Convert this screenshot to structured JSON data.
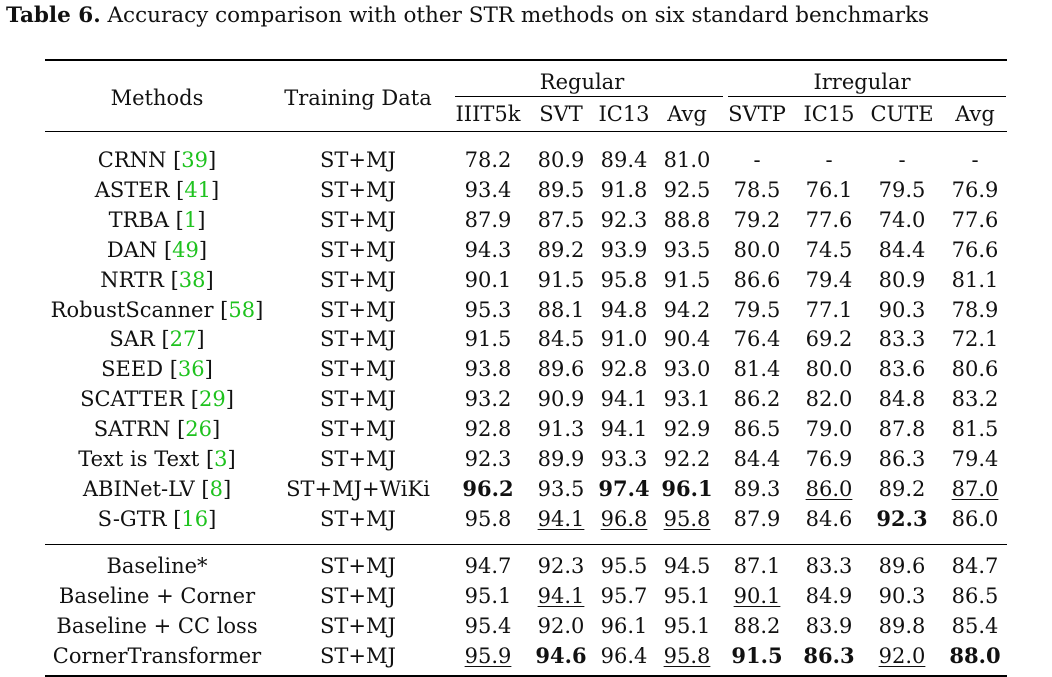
{
  "caption": {
    "label": "Table 6.",
    "text": "Accuracy comparison with other STR methods on six standard benchmarks"
  },
  "header": {
    "methods": "Methods",
    "training_data": "Training Data",
    "group_regular": "Regular",
    "group_irregular": "Irregular",
    "columns": [
      "IIIT5k",
      "SVT",
      "IC13",
      "Avg",
      "SVTP",
      "IC15",
      "CUTE",
      "Avg"
    ]
  },
  "colors": {
    "citation": "#1ec21e",
    "text": "#111111"
  },
  "rows": [
    {
      "method": "CRNN",
      "ref": "39",
      "data": "ST+MJ",
      "vals": [
        "78.2",
        "80.9",
        "89.4",
        "81.0",
        "-",
        "-",
        "-",
        "-"
      ],
      "bold": [],
      "under": []
    },
    {
      "method": "ASTER",
      "ref": "41",
      "data": "ST+MJ",
      "vals": [
        "93.4",
        "89.5",
        "91.8",
        "92.5",
        "78.5",
        "76.1",
        "79.5",
        "76.9"
      ],
      "bold": [],
      "under": []
    },
    {
      "method": "TRBA",
      "ref": "1",
      "data": "ST+MJ",
      "vals": [
        "87.9",
        "87.5",
        "92.3",
        "88.8",
        "79.2",
        "77.6",
        "74.0",
        "77.6"
      ],
      "bold": [],
      "under": []
    },
    {
      "method": "DAN",
      "ref": "49",
      "data": "ST+MJ",
      "vals": [
        "94.3",
        "89.2",
        "93.9",
        "93.5",
        "80.0",
        "74.5",
        "84.4",
        "76.6"
      ],
      "bold": [],
      "under": []
    },
    {
      "method": "NRTR",
      "ref": "38",
      "data": "ST+MJ",
      "vals": [
        "90.1",
        "91.5",
        "95.8",
        "91.5",
        "86.6",
        "79.4",
        "80.9",
        "81.1"
      ],
      "bold": [],
      "under": []
    },
    {
      "method": "RobustScanner",
      "ref": "58",
      "data": "ST+MJ",
      "vals": [
        "95.3",
        "88.1",
        "94.8",
        "94.2",
        "79.5",
        "77.1",
        "90.3",
        "78.9"
      ],
      "bold": [],
      "under": []
    },
    {
      "method": "SAR",
      "ref": "27",
      "data": "ST+MJ",
      "vals": [
        "91.5",
        "84.5",
        "91.0",
        "90.4",
        "76.4",
        "69.2",
        "83.3",
        "72.1"
      ],
      "bold": [],
      "under": []
    },
    {
      "method": "SEED",
      "ref": "36",
      "data": "ST+MJ",
      "vals": [
        "93.8",
        "89.6",
        "92.8",
        "93.0",
        "81.4",
        "80.0",
        "83.6",
        "80.6"
      ],
      "bold": [],
      "under": []
    },
    {
      "method": "SCATTER",
      "ref": "29",
      "data": "ST+MJ",
      "vals": [
        "93.2",
        "90.9",
        "94.1",
        "93.1",
        "86.2",
        "82.0",
        "84.8",
        "83.2"
      ],
      "bold": [],
      "under": []
    },
    {
      "method": "SATRN",
      "ref": "26",
      "data": "ST+MJ",
      "vals": [
        "92.8",
        "91.3",
        "94.1",
        "92.9",
        "86.5",
        "79.0",
        "87.8",
        "81.5"
      ],
      "bold": [],
      "under": []
    },
    {
      "method": "Text is Text",
      "ref": "3",
      "data": "ST+MJ",
      "vals": [
        "92.3",
        "89.9",
        "93.3",
        "92.2",
        "84.4",
        "76.9",
        "86.3",
        "79.4"
      ],
      "bold": [],
      "under": []
    },
    {
      "method": "ABINet-LV",
      "ref": "8",
      "data": "ST+MJ+WiKi",
      "vals": [
        "96.2",
        "93.5",
        "97.4",
        "96.1",
        "89.3",
        "86.0",
        "89.2",
        "87.0"
      ],
      "bold": [
        0,
        2,
        3
      ],
      "under": [
        5,
        7
      ]
    },
    {
      "method": "S-GTR",
      "ref": "16",
      "data": "ST+MJ",
      "vals": [
        "95.8",
        "94.1",
        "96.8",
        "95.8",
        "87.9",
        "84.6",
        "92.3",
        "86.0"
      ],
      "bold": [
        6
      ],
      "under": [
        1,
        2,
        3
      ]
    },
    {
      "method": "Baseline*",
      "ref": "",
      "data": "ST+MJ",
      "vals": [
        "94.7",
        "92.3",
        "95.5",
        "94.5",
        "87.1",
        "83.3",
        "89.6",
        "84.7"
      ],
      "bold": [],
      "under": []
    },
    {
      "method": "Baseline + Corner",
      "ref": "",
      "data": "ST+MJ",
      "vals": [
        "95.1",
        "94.1",
        "95.7",
        "95.1",
        "90.1",
        "84.9",
        "90.3",
        "86.5"
      ],
      "bold": [],
      "under": [
        1,
        4
      ]
    },
    {
      "method": "Baseline + CC loss",
      "ref": "",
      "data": "ST+MJ",
      "vals": [
        "95.4",
        "92.0",
        "96.1",
        "95.1",
        "88.2",
        "83.9",
        "89.8",
        "85.4"
      ],
      "bold": [],
      "under": []
    },
    {
      "method": "CornerTransformer",
      "ref": "",
      "data": "ST+MJ",
      "vals": [
        "95.9",
        "94.6",
        "96.4",
        "95.8",
        "91.5",
        "86.3",
        "92.0",
        "88.0"
      ],
      "bold": [
        1,
        4,
        5,
        7
      ],
      "under": [
        0,
        3,
        6
      ]
    }
  ]
}
